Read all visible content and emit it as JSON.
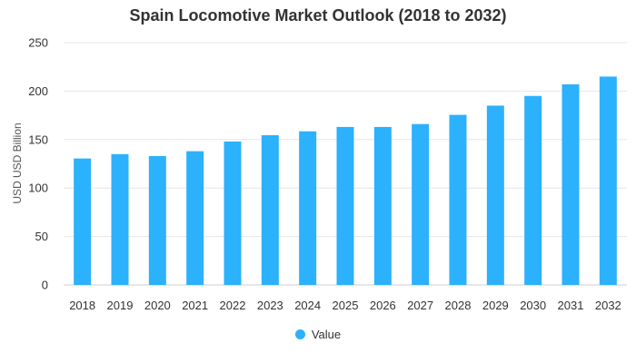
{
  "chart_data": {
    "type": "bar",
    "title": "Spain Locomotive Market Outlook (2018 to 2032)",
    "xlabel": "",
    "ylabel": "USD USD Billion",
    "categories": [
      "2018",
      "2019",
      "2020",
      "2021",
      "2022",
      "2023",
      "2024",
      "2025",
      "2026",
      "2027",
      "2028",
      "2029",
      "2030",
      "2031",
      "2032"
    ],
    "series": [
      {
        "name": "Value",
        "values": [
          130.5,
          135,
          133,
          138,
          148,
          154.5,
          158.5,
          163,
          163,
          166,
          175.5,
          185,
          195,
          207,
          215
        ]
      }
    ],
    "ylim": [
      0,
      250
    ],
    "yticks": [
      0,
      50,
      100,
      150,
      200,
      250
    ],
    "grid": true,
    "legend_position": "bottom",
    "bar_color": "#2cb1fc"
  }
}
